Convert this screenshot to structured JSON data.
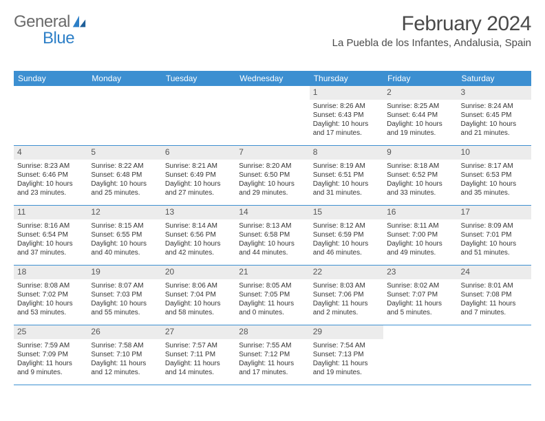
{
  "brand": {
    "name1": "General",
    "name2": "Blue"
  },
  "title": "February 2024",
  "location": "La Puebla de los Infantes, Andalusia, Spain",
  "weekdays": [
    "Sunday",
    "Monday",
    "Tuesday",
    "Wednesday",
    "Thursday",
    "Friday",
    "Saturday"
  ],
  "colors": {
    "header_bg": "#3c8fd1",
    "header_text": "#ffffff",
    "daynum_bg": "#ececec",
    "text": "#333333",
    "brand_gray": "#6a6a6a",
    "brand_blue": "#2d7fc7",
    "border": "#3c8fd1"
  },
  "weeks": [
    [
      null,
      null,
      null,
      null,
      {
        "n": "1",
        "sunrise": "8:26 AM",
        "sunset": "6:43 PM",
        "daylight": "10 hours and 17 minutes."
      },
      {
        "n": "2",
        "sunrise": "8:25 AM",
        "sunset": "6:44 PM",
        "daylight": "10 hours and 19 minutes."
      },
      {
        "n": "3",
        "sunrise": "8:24 AM",
        "sunset": "6:45 PM",
        "daylight": "10 hours and 21 minutes."
      }
    ],
    [
      {
        "n": "4",
        "sunrise": "8:23 AM",
        "sunset": "6:46 PM",
        "daylight": "10 hours and 23 minutes."
      },
      {
        "n": "5",
        "sunrise": "8:22 AM",
        "sunset": "6:48 PM",
        "daylight": "10 hours and 25 minutes."
      },
      {
        "n": "6",
        "sunrise": "8:21 AM",
        "sunset": "6:49 PM",
        "daylight": "10 hours and 27 minutes."
      },
      {
        "n": "7",
        "sunrise": "8:20 AM",
        "sunset": "6:50 PM",
        "daylight": "10 hours and 29 minutes."
      },
      {
        "n": "8",
        "sunrise": "8:19 AM",
        "sunset": "6:51 PM",
        "daylight": "10 hours and 31 minutes."
      },
      {
        "n": "9",
        "sunrise": "8:18 AM",
        "sunset": "6:52 PM",
        "daylight": "10 hours and 33 minutes."
      },
      {
        "n": "10",
        "sunrise": "8:17 AM",
        "sunset": "6:53 PM",
        "daylight": "10 hours and 35 minutes."
      }
    ],
    [
      {
        "n": "11",
        "sunrise": "8:16 AM",
        "sunset": "6:54 PM",
        "daylight": "10 hours and 37 minutes."
      },
      {
        "n": "12",
        "sunrise": "8:15 AM",
        "sunset": "6:55 PM",
        "daylight": "10 hours and 40 minutes."
      },
      {
        "n": "13",
        "sunrise": "8:14 AM",
        "sunset": "6:56 PM",
        "daylight": "10 hours and 42 minutes."
      },
      {
        "n": "14",
        "sunrise": "8:13 AM",
        "sunset": "6:58 PM",
        "daylight": "10 hours and 44 minutes."
      },
      {
        "n": "15",
        "sunrise": "8:12 AM",
        "sunset": "6:59 PM",
        "daylight": "10 hours and 46 minutes."
      },
      {
        "n": "16",
        "sunrise": "8:11 AM",
        "sunset": "7:00 PM",
        "daylight": "10 hours and 49 minutes."
      },
      {
        "n": "17",
        "sunrise": "8:09 AM",
        "sunset": "7:01 PM",
        "daylight": "10 hours and 51 minutes."
      }
    ],
    [
      {
        "n": "18",
        "sunrise": "8:08 AM",
        "sunset": "7:02 PM",
        "daylight": "10 hours and 53 minutes."
      },
      {
        "n": "19",
        "sunrise": "8:07 AM",
        "sunset": "7:03 PM",
        "daylight": "10 hours and 55 minutes."
      },
      {
        "n": "20",
        "sunrise": "8:06 AM",
        "sunset": "7:04 PM",
        "daylight": "10 hours and 58 minutes."
      },
      {
        "n": "21",
        "sunrise": "8:05 AM",
        "sunset": "7:05 PM",
        "daylight": "11 hours and 0 minutes."
      },
      {
        "n": "22",
        "sunrise": "8:03 AM",
        "sunset": "7:06 PM",
        "daylight": "11 hours and 2 minutes."
      },
      {
        "n": "23",
        "sunrise": "8:02 AM",
        "sunset": "7:07 PM",
        "daylight": "11 hours and 5 minutes."
      },
      {
        "n": "24",
        "sunrise": "8:01 AM",
        "sunset": "7:08 PM",
        "daylight": "11 hours and 7 minutes."
      }
    ],
    [
      {
        "n": "25",
        "sunrise": "7:59 AM",
        "sunset": "7:09 PM",
        "daylight": "11 hours and 9 minutes."
      },
      {
        "n": "26",
        "sunrise": "7:58 AM",
        "sunset": "7:10 PM",
        "daylight": "11 hours and 12 minutes."
      },
      {
        "n": "27",
        "sunrise": "7:57 AM",
        "sunset": "7:11 PM",
        "daylight": "11 hours and 14 minutes."
      },
      {
        "n": "28",
        "sunrise": "7:55 AM",
        "sunset": "7:12 PM",
        "daylight": "11 hours and 17 minutes."
      },
      {
        "n": "29",
        "sunrise": "7:54 AM",
        "sunset": "7:13 PM",
        "daylight": "11 hours and 19 minutes."
      },
      null,
      null
    ]
  ],
  "labels": {
    "sunrise": "Sunrise: ",
    "sunset": "Sunset: ",
    "daylight": "Daylight: "
  }
}
